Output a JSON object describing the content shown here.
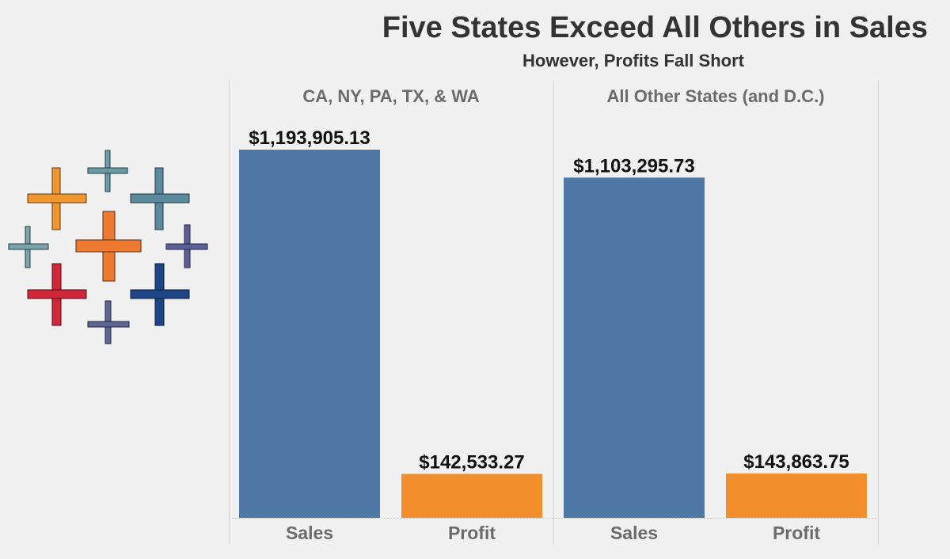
{
  "title": "Five States Exceed All Others in Sales",
  "subtitle": "However, Profits Fall Short",
  "colors": {
    "sales": "#4e79a7",
    "profit": "#f28e2b",
    "axis_text": "#6b6b6b",
    "label_text": "#111111"
  },
  "logo_icon": "tableau-logo-icon",
  "chart_data": {
    "type": "bar",
    "title": "Five States Exceed All Others in Sales",
    "subtitle": "However, Profits Fall Short",
    "xlabel": "",
    "ylabel": "",
    "ylim": [
      0,
      1300000
    ],
    "grid": false,
    "legend": "none",
    "panels": [
      {
        "name": "CA, NY, PA, TX, & WA",
        "categories": [
          "Sales",
          "Profit"
        ],
        "values": [
          1193905.13,
          142533.27
        ],
        "labels": [
          "$1,193,905.13",
          "$142,533.27"
        ]
      },
      {
        "name": "All Other States (and D.C.)",
        "categories": [
          "Sales",
          "Profit"
        ],
        "values": [
          1103295.73,
          143863.75
        ],
        "labels": [
          "$1,103,295.73",
          "$143,863.75"
        ]
      }
    ]
  }
}
